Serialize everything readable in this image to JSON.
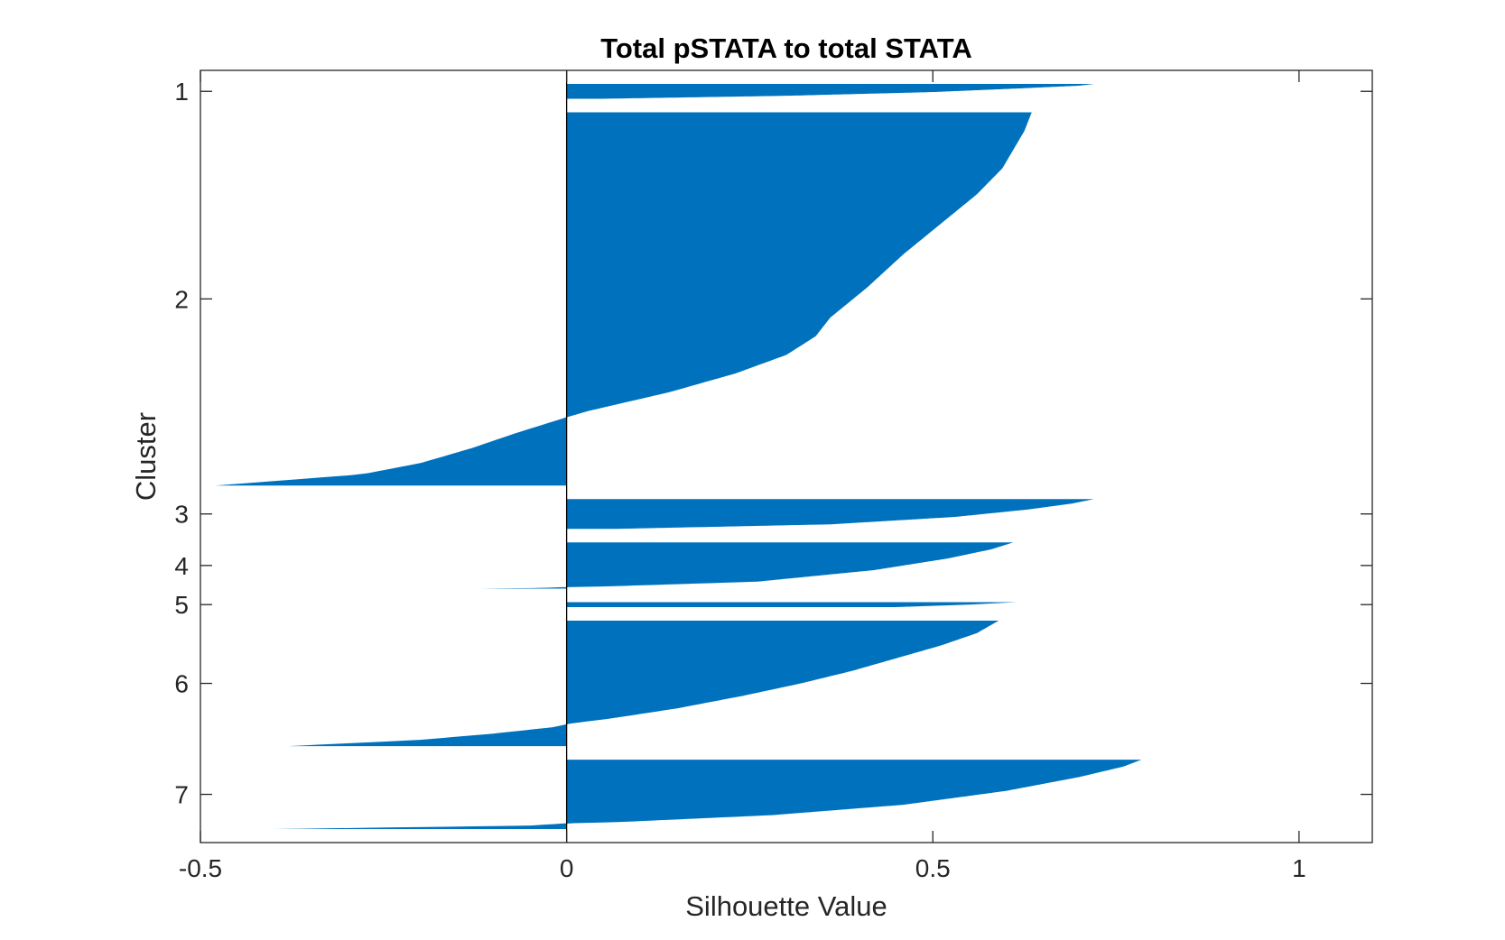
{
  "chart_data": {
    "type": "bar",
    "orientation": "horizontal",
    "title": "Total pSTATA to total STATA",
    "xlabel": "Silhouette Value",
    "ylabel": "Cluster",
    "xlim": [
      -0.5,
      1.1
    ],
    "xticks": [
      -0.5,
      0,
      0.5,
      1
    ],
    "xtick_labels": [
      "-0.5",
      "0",
      "0.5",
      "1"
    ],
    "bar_color": "#0072BD",
    "grid": false,
    "legend": "none",
    "clusters": [
      {
        "label": "1",
        "count": 9,
        "profile": [
          [
            0,
            0.72
          ],
          [
            0.12,
            0.7
          ],
          [
            0.3,
            0.62
          ],
          [
            0.55,
            0.5
          ],
          [
            0.8,
            0.3
          ],
          [
            1,
            0.05
          ]
        ]
      },
      {
        "label": "2",
        "count": 226,
        "profile": [
          [
            0,
            0.635
          ],
          [
            0.05,
            0.625
          ],
          [
            0.1,
            0.61
          ],
          [
            0.15,
            0.595
          ],
          [
            0.22,
            0.56
          ],
          [
            0.3,
            0.51
          ],
          [
            0.38,
            0.46
          ],
          [
            0.47,
            0.41
          ],
          [
            0.55,
            0.36
          ],
          [
            0.6,
            0.34
          ],
          [
            0.65,
            0.3
          ],
          [
            0.7,
            0.23
          ],
          [
            0.75,
            0.14
          ],
          [
            0.8,
            0.03
          ],
          [
            0.82,
            -0.005
          ],
          [
            0.86,
            -0.07
          ],
          [
            0.9,
            -0.13
          ],
          [
            0.94,
            -0.2
          ],
          [
            0.97,
            -0.28
          ],
          [
            1,
            -0.48
          ]
        ]
      },
      {
        "label": "3",
        "count": 18,
        "profile": [
          [
            0,
            0.72
          ],
          [
            0.15,
            0.69
          ],
          [
            0.35,
            0.63
          ],
          [
            0.6,
            0.53
          ],
          [
            0.85,
            0.36
          ],
          [
            1,
            0.07
          ]
        ]
      },
      {
        "label": "4",
        "count": 28,
        "profile": [
          [
            0,
            0.61
          ],
          [
            0.15,
            0.58
          ],
          [
            0.35,
            0.52
          ],
          [
            0.6,
            0.42
          ],
          [
            0.85,
            0.26
          ],
          [
            0.95,
            0.06
          ],
          [
            0.97,
            -0.005
          ],
          [
            0.99,
            -0.05
          ],
          [
            1,
            -0.12
          ]
        ]
      },
      {
        "label": "5",
        "count": 3,
        "profile": [
          [
            0,
            0.615
          ],
          [
            0.5,
            0.55
          ],
          [
            1,
            0.45
          ]
        ]
      },
      {
        "label": "6",
        "count": 76,
        "profile": [
          [
            0,
            0.59
          ],
          [
            0.1,
            0.56
          ],
          [
            0.2,
            0.51
          ],
          [
            0.3,
            0.45
          ],
          [
            0.4,
            0.39
          ],
          [
            0.5,
            0.32
          ],
          [
            0.6,
            0.24
          ],
          [
            0.7,
            0.15
          ],
          [
            0.78,
            0.06
          ],
          [
            0.82,
            0.005
          ],
          [
            0.85,
            -0.02
          ],
          [
            0.9,
            -0.1
          ],
          [
            0.95,
            -0.2
          ],
          [
            1,
            -0.38
          ]
        ]
      },
      {
        "label": "7",
        "count": 42,
        "profile": [
          [
            0,
            0.785
          ],
          [
            0.1,
            0.76
          ],
          [
            0.25,
            0.7
          ],
          [
            0.45,
            0.6
          ],
          [
            0.65,
            0.46
          ],
          [
            0.8,
            0.28
          ],
          [
            0.9,
            0.07
          ],
          [
            0.92,
            -0.005
          ],
          [
            0.95,
            -0.05
          ],
          [
            1,
            -0.4
          ]
        ]
      }
    ]
  }
}
